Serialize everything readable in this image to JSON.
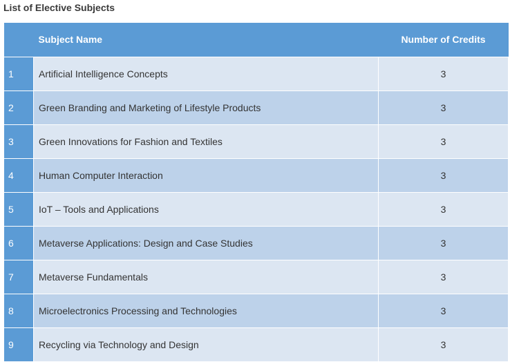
{
  "page": {
    "title": "List of Elective Subjects"
  },
  "table": {
    "columns": [
      "",
      "Subject Name",
      "Number of Credits"
    ],
    "rows": [
      {
        "num": "1",
        "subject": "Artificial Intelligence Concepts",
        "credits": "3"
      },
      {
        "num": "2",
        "subject": "Green Branding and Marketing of Lifestyle Products",
        "credits": "3"
      },
      {
        "num": "3",
        "subject": "Green Innovations for Fashion and Textiles",
        "credits": "3"
      },
      {
        "num": "4",
        "subject": "Human Computer Interaction",
        "credits": "3"
      },
      {
        "num": "5",
        "subject": "IoT – Tools and Applications",
        "credits": "3"
      },
      {
        "num": "6",
        "subject": "Metaverse Applications: Design and Case Studies",
        "credits": "3"
      },
      {
        "num": "7",
        "subject": "Metaverse Fundamentals",
        "credits": "3"
      },
      {
        "num": "8",
        "subject": "Microelectronics Processing and Technologies",
        "credits": "3"
      },
      {
        "num": "9",
        "subject": "Recycling via Technology and Design",
        "credits": "3"
      }
    ]
  },
  "colors": {
    "header_bg": "#5b9bd5",
    "row_light": "#dce6f2",
    "row_dark": "#bdd2ea"
  }
}
